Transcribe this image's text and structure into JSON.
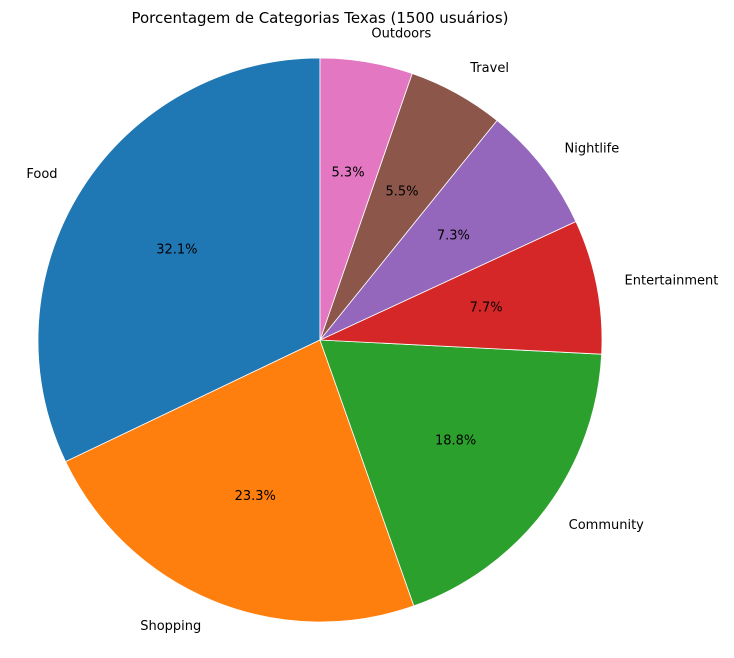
{
  "chart_data": {
    "type": "pie",
    "title": "Porcentagem de Categorias Texas (1500 usuários)",
    "start_angle_deg": 90,
    "direction": "counterclockwise",
    "slices": [
      {
        "label": "Food",
        "value": 32.1,
        "pct_label": "32.1%",
        "color": "#1f77b4"
      },
      {
        "label": "Shopping",
        "value": 23.3,
        "pct_label": "23.3%",
        "color": "#ff7f0e"
      },
      {
        "label": "Community",
        "value": 18.8,
        "pct_label": "18.8%",
        "color": "#2ca02c"
      },
      {
        "label": "Entertainment",
        "value": 7.7,
        "pct_label": "7.7%",
        "color": "#d62728"
      },
      {
        "label": "Nightlife",
        "value": 7.3,
        "pct_label": "7.3%",
        "color": "#9467bd"
      },
      {
        "label": "Travel",
        "value": 5.5,
        "pct_label": "5.5%",
        "color": "#8c564b"
      },
      {
        "label": "Outdoors",
        "value": 5.3,
        "pct_label": "5.3%",
        "color": "#e377c2"
      }
    ]
  }
}
